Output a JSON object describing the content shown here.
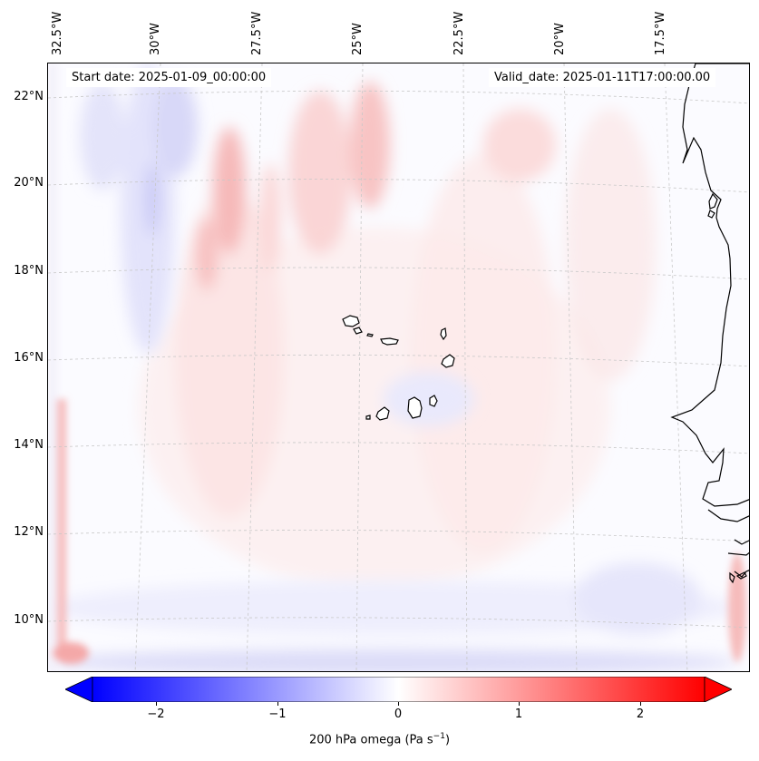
{
  "header": {
    "start_date": "Start date: 2025-01-09_00:00:00",
    "valid_date": "Valid_date: 2025-01-11T17:00:00.00"
  },
  "map": {
    "lon_labels": [
      "32.5°W",
      "30°W",
      "27.5°W",
      "25°W",
      "22.5°W",
      "20°W",
      "17.5°W"
    ],
    "lat_labels": [
      "22°N",
      "20°N",
      "18°N",
      "16°N",
      "14°N",
      "12°N",
      "10°N"
    ],
    "features": [
      "Cape Verde islands",
      "West African coastline"
    ]
  },
  "colorbar": {
    "label_prefix": "200 hPa omega (Pa s",
    "label_exp": "−1",
    "label_suffix": ")",
    "ticks": [
      "−2",
      "−1",
      "0",
      "1",
      "2"
    ],
    "range": [
      -2.6,
      2.6
    ],
    "neg_color": "#0000ff",
    "pos_color": "#ff0000"
  }
}
